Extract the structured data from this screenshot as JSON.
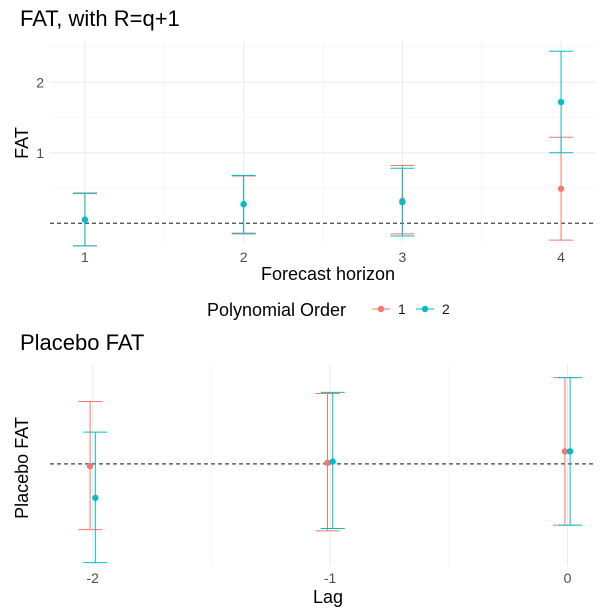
{
  "colors": {
    "order1": "#F8766D",
    "order2": "#00BFC4"
  },
  "legend": {
    "title": "Polynomial Order",
    "entries": [
      {
        "label": "1",
        "color": "#F8766D"
      },
      {
        "label": "2",
        "color": "#00BFC4"
      }
    ]
  },
  "chart_data": [
    {
      "type": "scatter",
      "title": "FAT, with R=q+1",
      "xlabel": "Forecast horizon",
      "ylabel": "FAT",
      "x_ticks": [
        "1",
        "2",
        "3",
        "4"
      ],
      "y_ticks": [
        1,
        2
      ],
      "xlim": [
        0.78,
        4.22
      ],
      "ylim": [
        -0.28,
        2.6
      ],
      "reference_line": 0,
      "grid": true,
      "series": [
        {
          "name": "1",
          "color": "#F8766D",
          "points": [
            {
              "x": 1,
              "y": 0.05,
              "lo": -0.32,
              "hi": 0.42
            },
            {
              "x": 2,
              "y": 0.27,
              "lo": -0.14,
              "hi": 0.67
            },
            {
              "x": 3,
              "y": 0.32,
              "lo": -0.15,
              "hi": 0.82
            },
            {
              "x": 4,
              "y": 0.49,
              "lo": -0.24,
              "hi": 1.22
            }
          ]
        },
        {
          "name": "2",
          "color": "#00BFC4",
          "points": [
            {
              "x": 1,
              "y": 0.05,
              "lo": -0.32,
              "hi": 0.43
            },
            {
              "x": 2,
              "y": 0.27,
              "lo": -0.15,
              "hi": 0.68
            },
            {
              "x": 3,
              "y": 0.3,
              "lo": -0.18,
              "hi": 0.78
            },
            {
              "x": 4,
              "y": 1.72,
              "lo": 1.0,
              "hi": 2.44
            }
          ]
        }
      ]
    },
    {
      "type": "scatter",
      "title": "Placebo FAT",
      "xlabel": "Lag",
      "ylabel": "Placebo FAT",
      "x_ticks": [
        "-2",
        "-1",
        "0"
      ],
      "y_ticks": [],
      "xlim": [
        -2.18,
        0.12
      ],
      "ylim": [
        -0.9,
        0.88
      ],
      "reference_line": 0,
      "grid": true,
      "series": [
        {
          "name": "1",
          "color": "#F8766D",
          "points": [
            {
              "x": -2,
              "y": -0.02,
              "lo": -0.58,
              "hi": 0.55
            },
            {
              "x": -1,
              "y": 0.01,
              "lo": -0.59,
              "hi": 0.62
            },
            {
              "x": 0,
              "y": 0.11,
              "lo": -0.54,
              "hi": 0.76
            }
          ]
        },
        {
          "name": "2",
          "color": "#00BFC4",
          "points": [
            {
              "x": -2,
              "y": -0.3,
              "lo": -0.87,
              "hi": 0.28
            },
            {
              "x": -1,
              "y": 0.02,
              "lo": -0.57,
              "hi": 0.63
            },
            {
              "x": 0,
              "y": 0.11,
              "lo": -0.54,
              "hi": 0.76
            }
          ]
        }
      ]
    }
  ]
}
